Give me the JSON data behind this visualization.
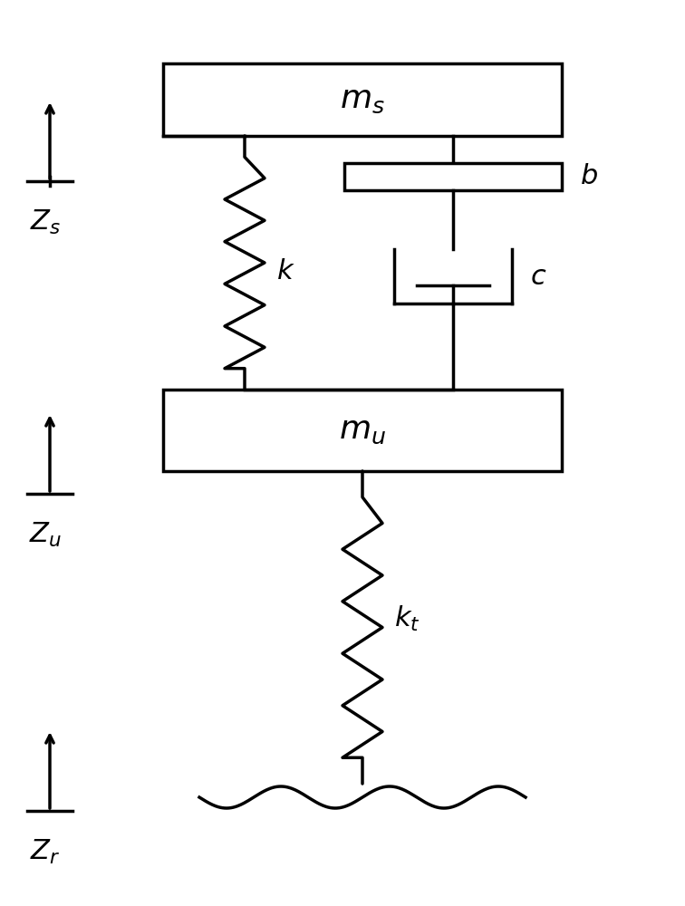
{
  "bg_color": "#ffffff",
  "line_color": "#000000",
  "line_width": 2.5,
  "fig_width": 7.56,
  "fig_height": 10.0,
  "labels": {
    "ms": "$\\mathbf{\\mathit{m_s}}$",
    "mu": "$\\mathbf{\\mathit{m_u}}$",
    "k": "$\\mathbf{\\mathit{k}}$",
    "b": "$\\mathbf{\\mathit{b}}$",
    "c": "$\\mathbf{\\mathit{c}}$",
    "kt": "$\\mathbf{\\mathit{k_t}}$",
    "zs": "$\\mathbf{\\mathit{Z_s}}$",
    "zu": "$\\mathbf{\\mathit{Z_u}}$",
    "zr": "$\\mathbf{\\mathit{Z_r}}$"
  },
  "label_fontsize": 22
}
